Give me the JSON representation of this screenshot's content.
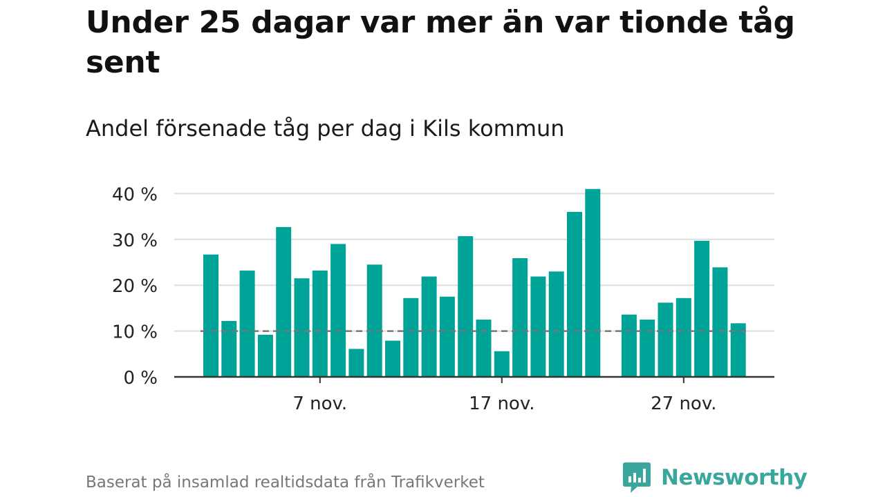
{
  "header": {
    "title": "Under 25 dagar var mer än var tionde tåg sent",
    "subtitle": "Andel försenade tåg per dag i Kils kommun"
  },
  "footer": {
    "source": "Baserat på insamlad realtidsdata från Trafikverket",
    "brand": "Newsworthy"
  },
  "colors": {
    "bar": "#00a398",
    "grid": "#dddddd",
    "axis": "#333333",
    "reference_line": "#777777",
    "brand": "#3aa79c"
  },
  "chart_data": {
    "type": "bar",
    "x": [
      "1 nov.",
      "2 nov.",
      "3 nov.",
      "4 nov.",
      "5 nov.",
      "6 nov.",
      "7 nov.",
      "8 nov.",
      "9 nov.",
      "10 nov.",
      "11 nov.",
      "12 nov.",
      "13 nov.",
      "14 nov.",
      "15 nov.",
      "16 nov.",
      "17 nov.",
      "18 nov.",
      "19 nov.",
      "20 nov.",
      "21 nov.",
      "22 nov.",
      "23 nov.",
      "24 nov.",
      "25 nov.",
      "26 nov.",
      "27 nov.",
      "28 nov.",
      "29 nov.",
      "30 nov."
    ],
    "values": [
      26.7,
      12.2,
      23.2,
      9.2,
      32.7,
      21.5,
      23.2,
      29.0,
      6.1,
      24.5,
      7.9,
      17.2,
      21.9,
      17.5,
      30.7,
      12.5,
      5.6,
      25.9,
      21.9,
      23.0,
      36.0,
      41.0,
      null,
      13.6,
      12.5,
      16.2,
      17.2,
      29.7,
      23.9,
      11.7
    ],
    "x_ticks": [
      "7 nov.",
      "17 nov.",
      "27 nov."
    ],
    "y_ticks": [
      0,
      10,
      20,
      30,
      40
    ],
    "y_tick_labels": [
      "0 %",
      "10 %",
      "20 %",
      "30 %",
      "40 %"
    ],
    "ylim": [
      0,
      42
    ],
    "reference_line": 10,
    "grid": true,
    "xlabel": "",
    "ylabel": ""
  }
}
